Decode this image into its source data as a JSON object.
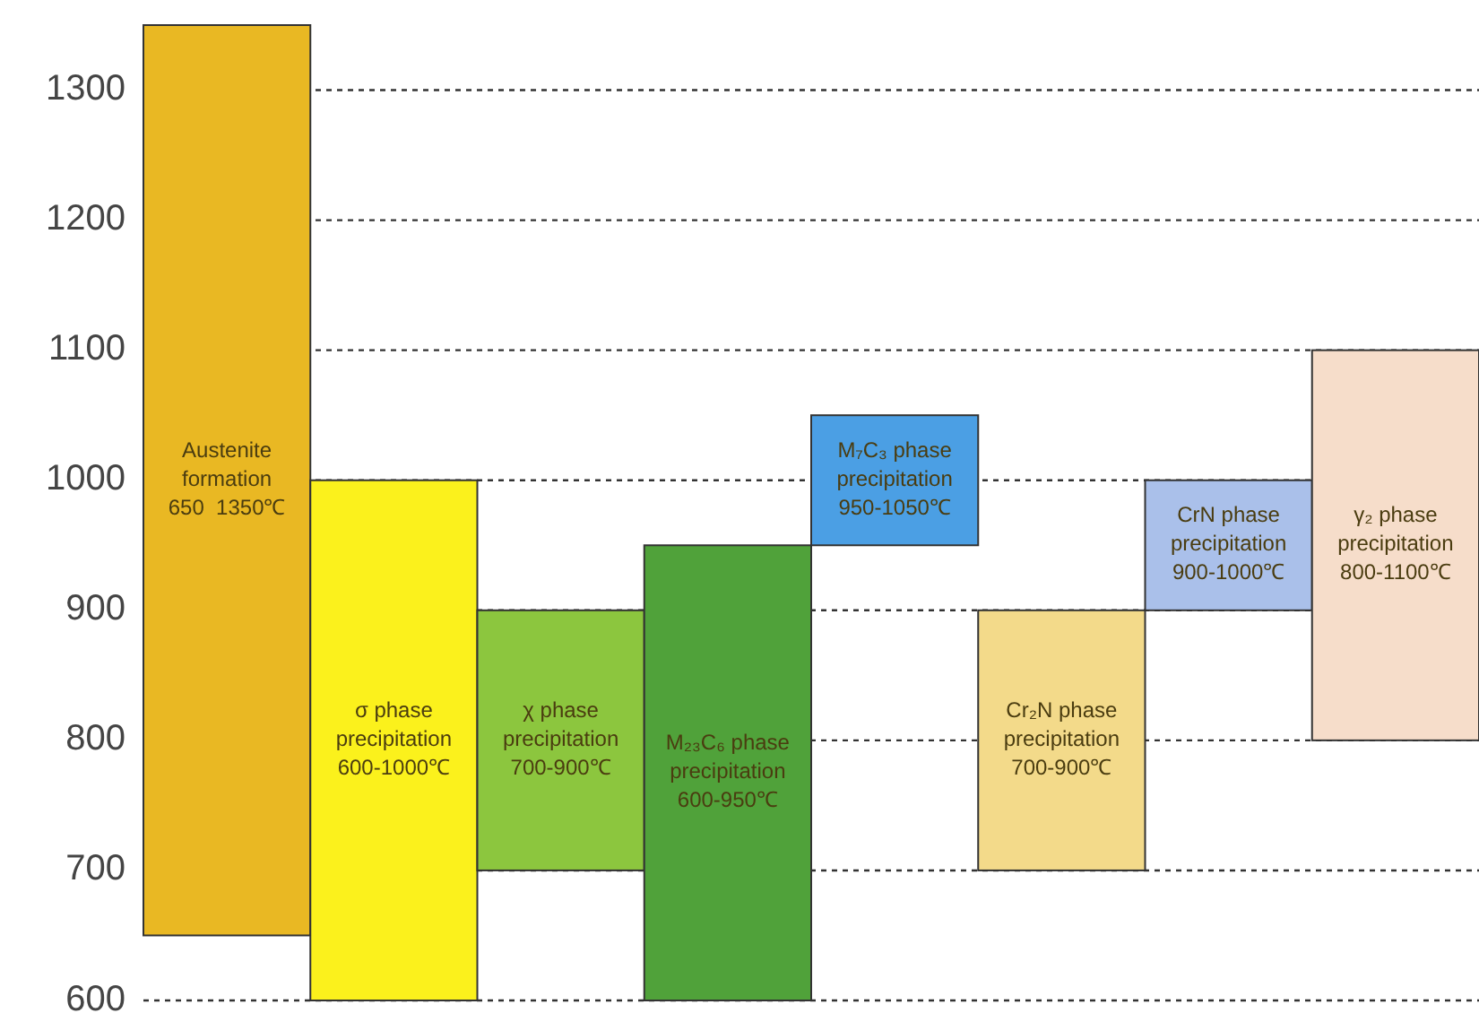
{
  "chart_data": {
    "type": "bar",
    "categories": [
      null,
      null,
      null,
      null,
      null,
      null,
      null,
      null
    ],
    "base": [
      650,
      600,
      700,
      600,
      950,
      700,
      900,
      800
    ],
    "values": [
      700,
      400,
      200,
      350,
      100,
      200,
      100,
      300
    ],
    "colors": [
      "#e9b823",
      "#fbf11c",
      "#8cc63e",
      "#50a23a",
      "#4b9fe4",
      "#f3da8a",
      "#aac0ea",
      "#f6ddca"
    ],
    "value_labels": [
      "Austenite\nformation\n650  1350℃",
      "σ phase\nprecipitation\n600-1000℃",
      "χ phase\nprecipitation\n700-900℃",
      "M₂₃C₆ phase\nprecipitation\n600-950℃",
      "M₇C₃ phase\nprecipitation\n950-1050℃",
      "Cr₂N phase\nprecipitation\n700-900℃",
      "CrN phase\nprecipitation\n900-1000℃",
      "γ₂ phase\nprecipitation\n800-1100℃"
    ],
    "ylim": [
      600,
      1350
    ],
    "yticks": [
      600,
      700,
      800,
      900,
      1000,
      1100,
      1200,
      1300
    ],
    "grid": "y",
    "line_style": "dotted"
  }
}
